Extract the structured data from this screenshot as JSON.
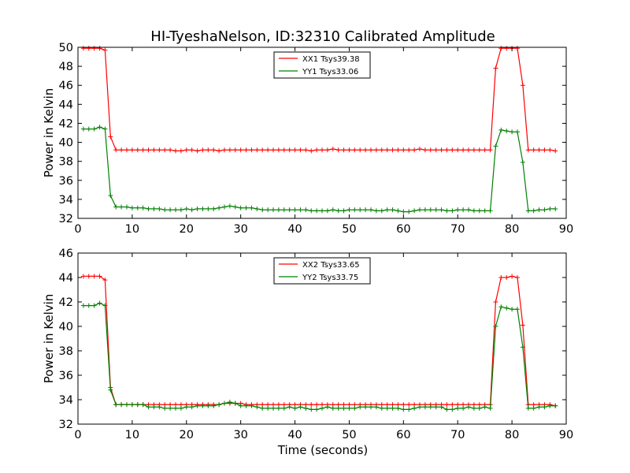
{
  "figure": {
    "title": "HI-TyeshaNelson, ID:32310 Calibrated Amplitude",
    "xlabel": "Time (seconds)"
  },
  "chart_data": [
    {
      "type": "line",
      "ylabel": "Power in Kelvin",
      "xlim": [
        0,
        90
      ],
      "ylim": [
        32,
        50
      ],
      "xticks": [
        "0",
        "10",
        "20",
        "30",
        "40",
        "50",
        "60",
        "70",
        "80",
        "90"
      ],
      "yticks": [
        "32",
        "34",
        "36",
        "38",
        "40",
        "42",
        "44",
        "46",
        "48",
        "50"
      ],
      "grid": false,
      "legend_position": "top-center",
      "x": [
        1,
        2,
        3,
        4,
        5,
        6,
        7,
        8,
        9,
        10,
        11,
        12,
        13,
        14,
        15,
        16,
        17,
        18,
        19,
        20,
        21,
        22,
        23,
        24,
        25,
        26,
        27,
        28,
        29,
        30,
        31,
        32,
        33,
        34,
        35,
        36,
        37,
        38,
        39,
        40,
        41,
        42,
        43,
        44,
        45,
        46,
        47,
        48,
        49,
        50,
        51,
        52,
        53,
        54,
        55,
        56,
        57,
        58,
        59,
        60,
        61,
        62,
        63,
        64,
        65,
        66,
        67,
        68,
        69,
        70,
        71,
        72,
        73,
        74,
        75,
        76,
        77,
        78,
        79,
        80,
        81,
        82,
        83,
        84,
        85,
        86,
        87,
        88
      ],
      "series": [
        {
          "name": "XX1 Tsys39.38",
          "color": "#ff0000",
          "values": [
            49.9,
            49.9,
            49.9,
            49.9,
            49.7,
            40.6,
            39.2,
            39.2,
            39.2,
            39.2,
            39.2,
            39.2,
            39.2,
            39.2,
            39.2,
            39.2,
            39.2,
            39.1,
            39.1,
            39.2,
            39.2,
            39.1,
            39.2,
            39.2,
            39.2,
            39.1,
            39.2,
            39.2,
            39.2,
            39.2,
            39.2,
            39.2,
            39.2,
            39.2,
            39.2,
            39.2,
            39.2,
            39.2,
            39.2,
            39.2,
            39.2,
            39.2,
            39.1,
            39.2,
            39.2,
            39.2,
            39.3,
            39.2,
            39.2,
            39.2,
            39.2,
            39.2,
            39.2,
            39.2,
            39.2,
            39.2,
            39.2,
            39.2,
            39.2,
            39.2,
            39.2,
            39.2,
            39.3,
            39.2,
            39.2,
            39.2,
            39.2,
            39.2,
            39.2,
            39.2,
            39.2,
            39.2,
            39.2,
            39.2,
            39.2,
            39.2,
            47.8,
            49.9,
            49.9,
            49.9,
            49.9,
            46.0,
            39.2,
            39.2,
            39.2,
            39.2,
            39.2,
            39.1
          ]
        },
        {
          "name": "YY1 Tsys33.06",
          "color": "#008000",
          "values": [
            41.4,
            41.4,
            41.4,
            41.6,
            41.4,
            34.4,
            33.2,
            33.2,
            33.2,
            33.1,
            33.1,
            33.1,
            33.0,
            33.0,
            33.0,
            32.9,
            32.9,
            32.9,
            32.9,
            33.0,
            32.9,
            33.0,
            33.0,
            33.0,
            33.0,
            33.1,
            33.2,
            33.3,
            33.2,
            33.1,
            33.1,
            33.1,
            33.0,
            32.9,
            32.9,
            32.9,
            32.9,
            32.9,
            32.9,
            32.9,
            32.9,
            32.9,
            32.8,
            32.8,
            32.8,
            32.8,
            32.9,
            32.8,
            32.8,
            32.9,
            32.9,
            32.9,
            32.9,
            32.9,
            32.8,
            32.8,
            32.9,
            32.9,
            32.8,
            32.7,
            32.7,
            32.8,
            32.9,
            32.9,
            32.9,
            32.9,
            32.9,
            32.8,
            32.8,
            32.9,
            32.9,
            32.9,
            32.8,
            32.8,
            32.8,
            32.8,
            39.6,
            41.3,
            41.2,
            41.1,
            41.1,
            37.9,
            32.8,
            32.8,
            32.9,
            32.9,
            33.0,
            33.0
          ]
        }
      ]
    },
    {
      "type": "line",
      "ylabel": "Power in Kelvin",
      "xlim": [
        0,
        90
      ],
      "ylim": [
        32,
        46
      ],
      "xticks": [
        "0",
        "10",
        "20",
        "30",
        "40",
        "50",
        "60",
        "70",
        "80",
        "90"
      ],
      "yticks": [
        "32",
        "34",
        "36",
        "38",
        "40",
        "42",
        "44",
        "46"
      ],
      "grid": false,
      "legend_position": "top-center",
      "x": [
        1,
        2,
        3,
        4,
        5,
        6,
        7,
        8,
        9,
        10,
        11,
        12,
        13,
        14,
        15,
        16,
        17,
        18,
        19,
        20,
        21,
        22,
        23,
        24,
        25,
        26,
        27,
        28,
        29,
        30,
        31,
        32,
        33,
        34,
        35,
        36,
        37,
        38,
        39,
        40,
        41,
        42,
        43,
        44,
        45,
        46,
        47,
        48,
        49,
        50,
        51,
        52,
        53,
        54,
        55,
        56,
        57,
        58,
        59,
        60,
        61,
        62,
        63,
        64,
        65,
        66,
        67,
        68,
        69,
        70,
        71,
        72,
        73,
        74,
        75,
        76,
        77,
        78,
        79,
        80,
        81,
        82,
        83,
        84,
        85,
        86,
        87,
        88
      ],
      "series": [
        {
          "name": "XX2 Tsys33.65",
          "color": "#ff0000",
          "values": [
            44.1,
            44.1,
            44.1,
            44.1,
            43.8,
            35.0,
            33.6,
            33.6,
            33.6,
            33.6,
            33.6,
            33.6,
            33.6,
            33.6,
            33.6,
            33.6,
            33.6,
            33.6,
            33.6,
            33.6,
            33.6,
            33.6,
            33.6,
            33.6,
            33.6,
            33.6,
            33.7,
            33.7,
            33.7,
            33.7,
            33.6,
            33.6,
            33.6,
            33.6,
            33.6,
            33.6,
            33.6,
            33.6,
            33.6,
            33.6,
            33.6,
            33.6,
            33.6,
            33.6,
            33.6,
            33.6,
            33.6,
            33.6,
            33.6,
            33.6,
            33.6,
            33.6,
            33.6,
            33.6,
            33.6,
            33.6,
            33.6,
            33.6,
            33.6,
            33.6,
            33.6,
            33.6,
            33.6,
            33.6,
            33.6,
            33.6,
            33.6,
            33.6,
            33.6,
            33.6,
            33.6,
            33.6,
            33.6,
            33.6,
            33.6,
            33.6,
            42.0,
            44.0,
            44.0,
            44.1,
            44.0,
            40.1,
            33.6,
            33.6,
            33.6,
            33.6,
            33.6,
            33.5
          ]
        },
        {
          "name": "YY2 Tsys33.75",
          "color": "#008000",
          "values": [
            41.7,
            41.7,
            41.7,
            41.9,
            41.7,
            34.8,
            33.6,
            33.6,
            33.6,
            33.6,
            33.6,
            33.6,
            33.4,
            33.4,
            33.4,
            33.3,
            33.3,
            33.3,
            33.3,
            33.4,
            33.4,
            33.5,
            33.5,
            33.5,
            33.5,
            33.6,
            33.7,
            33.8,
            33.7,
            33.5,
            33.5,
            33.5,
            33.4,
            33.3,
            33.3,
            33.3,
            33.3,
            33.3,
            33.4,
            33.3,
            33.4,
            33.3,
            33.2,
            33.2,
            33.3,
            33.4,
            33.3,
            33.3,
            33.3,
            33.3,
            33.3,
            33.4,
            33.4,
            33.4,
            33.4,
            33.3,
            33.3,
            33.3,
            33.3,
            33.2,
            33.2,
            33.3,
            33.4,
            33.4,
            33.4,
            33.4,
            33.4,
            33.2,
            33.2,
            33.3,
            33.3,
            33.4,
            33.3,
            33.3,
            33.4,
            33.3,
            40.0,
            41.6,
            41.5,
            41.4,
            41.4,
            38.3,
            33.3,
            33.3,
            33.4,
            33.4,
            33.5,
            33.5
          ]
        }
      ]
    }
  ]
}
